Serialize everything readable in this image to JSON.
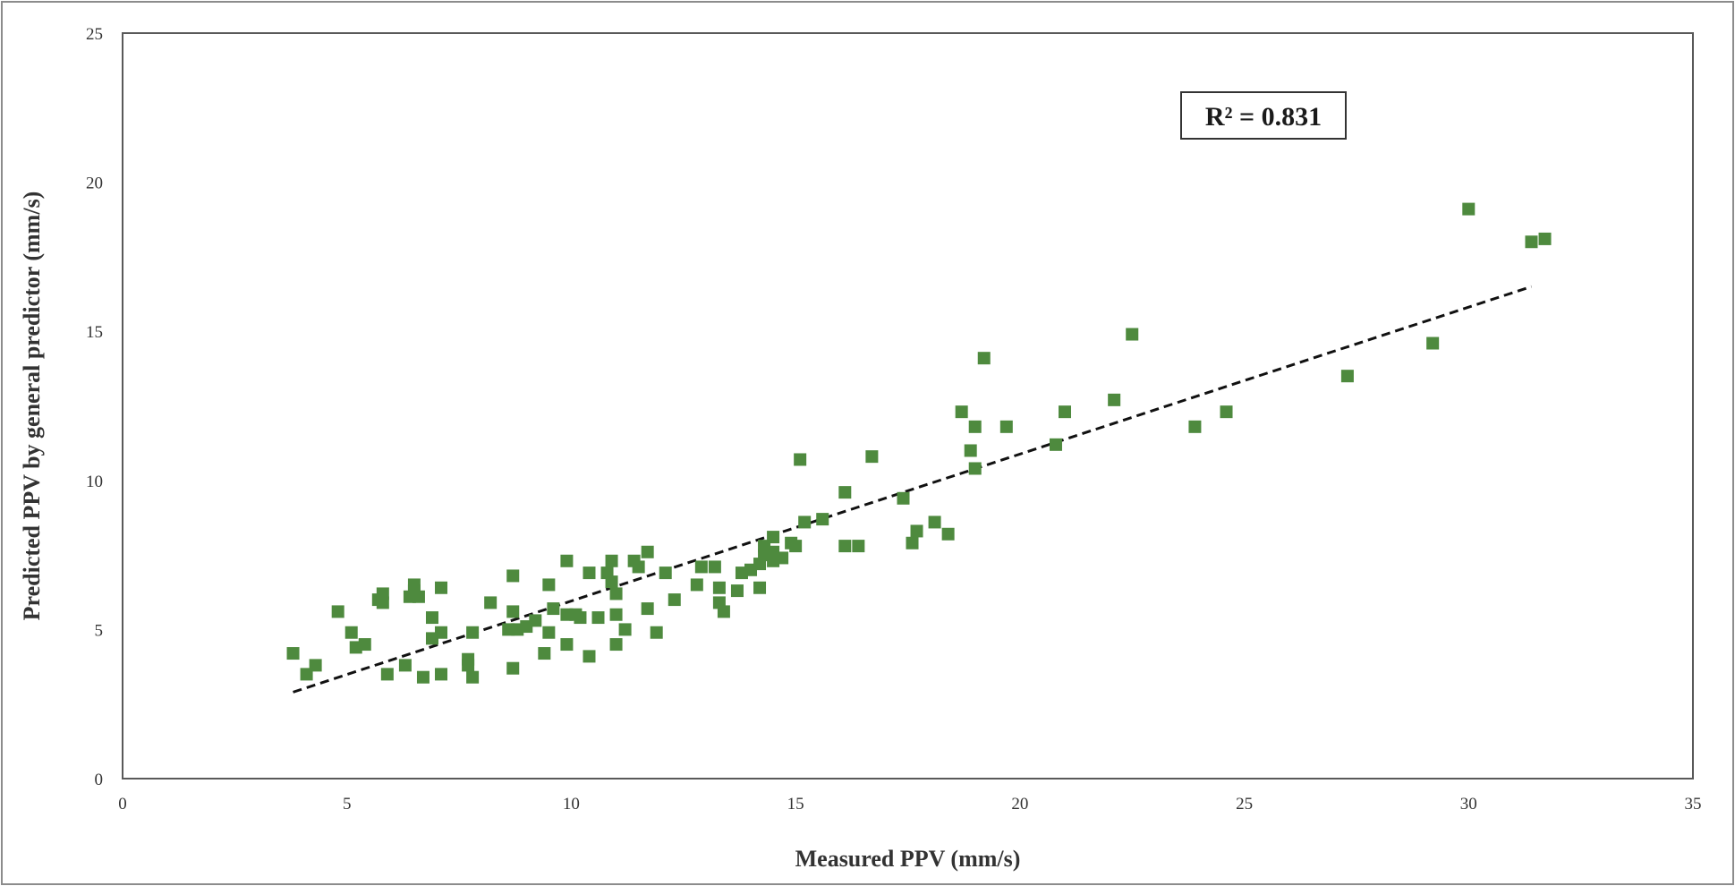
{
  "chart_data": {
    "type": "scatter",
    "xlabel": "Measured PPV (mm/s)",
    "ylabel": "Predicted PPV by general predictor (mm/s)",
    "xlim": [
      0,
      35
    ],
    "ylim": [
      0,
      25
    ],
    "xticks": [
      0,
      5,
      10,
      15,
      20,
      25,
      30,
      35
    ],
    "yticks": [
      0,
      5,
      10,
      15,
      20,
      25
    ],
    "grid": false,
    "annotation": "R² = 0.831",
    "trendline": {
      "style": "dashed",
      "x": [
        3.8,
        31.4
      ],
      "y": [
        2.9,
        16.5
      ]
    },
    "series": [
      {
        "color": "#4e8a3e",
        "marker": "square",
        "points": [
          [
            3.8,
            4.2
          ],
          [
            4.1,
            3.5
          ],
          [
            4.3,
            3.8
          ],
          [
            4.8,
            5.6
          ],
          [
            5.1,
            4.9
          ],
          [
            5.2,
            4.4
          ],
          [
            5.4,
            4.5
          ],
          [
            5.7,
            6.0
          ],
          [
            5.8,
            6.2
          ],
          [
            5.8,
            5.9
          ],
          [
            5.9,
            3.5
          ],
          [
            6.3,
            3.8
          ],
          [
            6.4,
            6.1
          ],
          [
            6.5,
            6.5
          ],
          [
            6.5,
            6.3
          ],
          [
            6.6,
            6.1
          ],
          [
            6.7,
            3.4
          ],
          [
            6.9,
            5.4
          ],
          [
            6.9,
            4.7
          ],
          [
            7.1,
            4.9
          ],
          [
            7.1,
            3.5
          ],
          [
            7.1,
            6.4
          ],
          [
            7.7,
            4.0
          ],
          [
            7.7,
            3.8
          ],
          [
            7.8,
            4.9
          ],
          [
            7.8,
            3.4
          ],
          [
            8.2,
            5.9
          ],
          [
            8.6,
            5.0
          ],
          [
            8.7,
            6.8
          ],
          [
            8.7,
            3.7
          ],
          [
            8.7,
            5.6
          ],
          [
            8.8,
            5.0
          ],
          [
            9.0,
            5.1
          ],
          [
            9.2,
            5.3
          ],
          [
            9.4,
            4.2
          ],
          [
            9.5,
            4.9
          ],
          [
            9.5,
            6.5
          ],
          [
            9.6,
            5.7
          ],
          [
            9.9,
            7.3
          ],
          [
            9.9,
            5.5
          ],
          [
            9.9,
            4.5
          ],
          [
            10.1,
            5.5
          ],
          [
            10.2,
            5.4
          ],
          [
            10.4,
            4.1
          ],
          [
            10.4,
            6.9
          ],
          [
            10.6,
            5.4
          ],
          [
            10.8,
            6.9
          ],
          [
            10.9,
            7.3
          ],
          [
            10.9,
            6.6
          ],
          [
            11.0,
            4.5
          ],
          [
            11.0,
            6.2
          ],
          [
            11.0,
            5.5
          ],
          [
            11.2,
            5.0
          ],
          [
            11.4,
            7.3
          ],
          [
            11.5,
            7.1
          ],
          [
            11.7,
            7.6
          ],
          [
            11.7,
            5.7
          ],
          [
            11.9,
            4.9
          ],
          [
            12.1,
            6.9
          ],
          [
            12.3,
            6.0
          ],
          [
            12.8,
            6.5
          ],
          [
            12.9,
            7.1
          ],
          [
            13.2,
            7.1
          ],
          [
            13.3,
            6.4
          ],
          [
            13.3,
            5.9
          ],
          [
            13.4,
            5.6
          ],
          [
            13.7,
            6.3
          ],
          [
            13.8,
            6.9
          ],
          [
            14.0,
            7.0
          ],
          [
            14.2,
            6.4
          ],
          [
            14.2,
            7.2
          ],
          [
            14.3,
            7.5
          ],
          [
            14.3,
            7.8
          ],
          [
            14.5,
            7.3
          ],
          [
            14.5,
            7.6
          ],
          [
            14.5,
            8.1
          ],
          [
            14.7,
            7.4
          ],
          [
            14.9,
            7.9
          ],
          [
            15.0,
            7.8
          ],
          [
            15.2,
            8.6
          ],
          [
            15.1,
            10.7
          ],
          [
            15.6,
            8.7
          ],
          [
            16.1,
            9.6
          ],
          [
            16.1,
            7.8
          ],
          [
            16.4,
            7.8
          ],
          [
            16.7,
            10.8
          ],
          [
            17.4,
            9.4
          ],
          [
            17.6,
            7.9
          ],
          [
            17.7,
            8.3
          ],
          [
            18.1,
            8.6
          ],
          [
            18.4,
            8.2
          ],
          [
            18.7,
            12.3
          ],
          [
            18.9,
            11.0
          ],
          [
            19.0,
            10.4
          ],
          [
            19.0,
            11.8
          ],
          [
            19.2,
            14.1
          ],
          [
            19.7,
            11.8
          ],
          [
            20.8,
            11.2
          ],
          [
            21.0,
            12.3
          ],
          [
            22.1,
            12.7
          ],
          [
            22.5,
            14.9
          ],
          [
            23.9,
            11.8
          ],
          [
            24.6,
            12.3
          ],
          [
            27.3,
            13.5
          ],
          [
            29.2,
            14.6
          ],
          [
            30.0,
            19.1
          ],
          [
            31.4,
            18.0
          ],
          [
            31.7,
            18.1
          ]
        ]
      }
    ]
  }
}
